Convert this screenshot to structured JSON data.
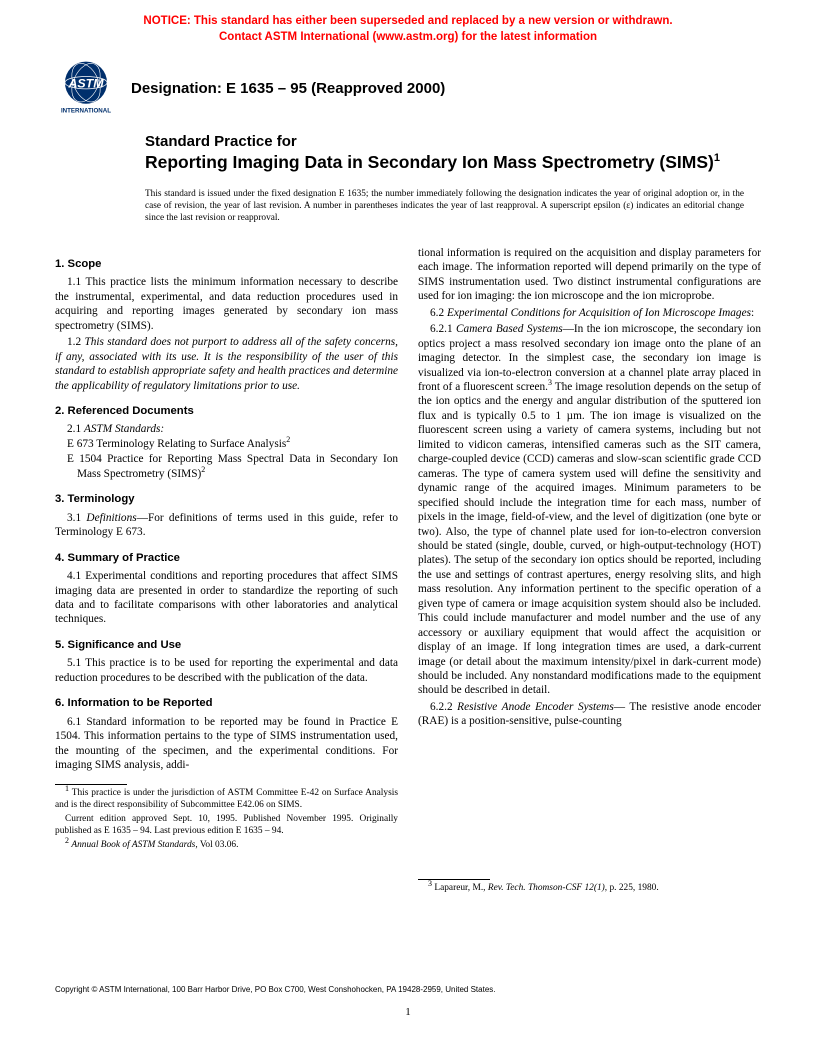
{
  "notice": {
    "line1": "NOTICE: This standard has either been superseded and replaced by a new version or withdrawn.",
    "line2": "Contact ASTM International (www.astm.org) for the latest information",
    "color": "#ff0000"
  },
  "logo": {
    "text_top": "ASTM",
    "text_bottom": "INTERNATIONAL",
    "color": "#002f6c"
  },
  "designation": "Designation: E 1635 – 95 (Reapproved 2000)",
  "title": {
    "pre": "Standard Practice for",
    "main": "Reporting Imaging Data in Secondary Ion Mass Spectrometry (SIMS)",
    "sup": "1"
  },
  "issuance": "This standard is issued under the fixed designation E 1635; the number immediately following the designation indicates the year of original adoption or, in the case of revision, the year of last revision. A number in parentheses indicates the year of last reapproval. A superscript epsilon (ε) indicates an editorial change since the last revision or reapproval.",
  "left": {
    "s1_head": "1. Scope",
    "s1_1": "1.1 This practice lists the minimum information necessary to describe the instrumental, experimental, and data reduction procedures used in acquiring and reporting images generated by secondary ion mass spectrometry (SIMS).",
    "s1_2": "1.2 This standard does not purport to address all of the safety concerns, if any, associated with its use. It is the responsibility of the user of this standard to establish appropriate safety and health practices and determine the applicability of regulatory limitations prior to use.",
    "s2_head": "2. Referenced Documents",
    "s2_1": "2.1 ASTM Standards:",
    "s2_ref1": "E 673 Terminology Relating to Surface Analysis",
    "s2_ref1_sup": "2",
    "s2_ref2": "E 1504 Practice for Reporting Mass Spectral Data in Secondary Ion Mass Spectrometry (SIMS)",
    "s2_ref2_sup": "2",
    "s3_head": "3. Terminology",
    "s3_1a": "3.1 ",
    "s3_1b": "Definitions",
    "s3_1c": "—For definitions of terms used in this guide, refer to Terminology E 673.",
    "s4_head": "4. Summary of Practice",
    "s4_1": "4.1 Experimental conditions and reporting procedures that affect SIMS imaging data are presented in order to standardize the reporting of such data and to facilitate comparisons with other laboratories and analytical techniques.",
    "s5_head": "5. Significance and Use",
    "s5_1": "5.1 This practice is to be used for reporting the experimental and data reduction procedures to be described with the publication of the data.",
    "s6_head": "6. Information to be Reported",
    "s6_1": "6.1 Standard information to be reported may be found in Practice E 1504. This information pertains to the type of SIMS instrumentation used, the mounting of the specimen, and the experimental conditions. For imaging SIMS analysis, addi-",
    "fn1a": " This practice is under the jurisdiction of ASTM Committee E-42 on Surface Analysis and is the direct responsibility of Subcommittee E42.06 on SIMS.",
    "fn1b": "Current edition approved Sept. 10, 1995. Published November 1995. Originally published as E 1635 – 94. Last previous edition E 1635 – 94.",
    "fn2": "Annual Book of ASTM Standards",
    "fn2b": ", Vol 03.06."
  },
  "right": {
    "p1": "tional information is required on the acquisition and display parameters for each image. The information reported will depend primarily on the type of SIMS instrumentation used. Two distinct instrumental configurations are used for ion imaging: the ion microscope and the ion microprobe.",
    "s6_2a": "6.2 ",
    "s6_2b": "Experimental Conditions for Acquisition of Ion Microscope Images",
    "s6_2c": ":",
    "s6_2_1a": "6.2.1 ",
    "s6_2_1b": "Camera Based Systems",
    "s6_2_1c": "—In the ion microscope, the secondary ion optics project a mass resolved secondary ion image onto the plane of an imaging detector. In the simplest case, the secondary ion image is visualized via ion-to-electron conversion at a channel plate array placed in front of a fluorescent screen.",
    "s6_2_1_sup": "3",
    "s6_2_1d": " The image resolution depends on the setup of the ion optics and the energy and angular distribution of the sputtered ion flux and is typically 0.5 to 1 µm. The ion image is visualized on the fluorescent screen using a variety of camera systems, including but not limited to vidicon cameras, intensified cameras such as the SIT camera, charge-coupled device (CCD) cameras and slow-scan scientific grade CCD cameras. The type of camera system used will define the sensitivity and dynamic range of the acquired images. Minimum parameters to be specified should include the integration time for each mass, number of pixels in the image, field-of-view, and the level of digitization (one byte or two). Also, the type of channel plate used for ion-to-electron conversion should be stated (single, double, curved, or high-output-technology (HOT) plates). The setup of the secondary ion optics should be reported, including the use and settings of contrast apertures, energy resolving slits, and high mass resolution. Any information pertinent to the specific operation of a given type of camera or image acquisition system should also be included. This could include manufacturer and model number and the use of any accessory or auxiliary equipment that would affect the acquisition or display of an image. If long integration times are used, a dark-current image (or detail about the maximum intensity/pixel in dark-current mode) should be included. Any nonstandard modifications made to the equipment should be described in detail.",
    "s6_2_2a": "6.2.2 ",
    "s6_2_2b": "Resistive Anode Encoder Systems",
    "s6_2_2c": "— The resistive anode encoder (RAE) is a position-sensitive, pulse-counting",
    "fn3a": " Lapareur, M., ",
    "fn3b": "Rev. Tech. Thomson-CSF 12(1)",
    "fn3c": ", p. 225, 1980."
  },
  "copyright": "Copyright © ASTM International, 100 Barr Harbor Drive, PO Box C700, West Conshohocken, PA 19428-2959, United States.",
  "page": "1"
}
